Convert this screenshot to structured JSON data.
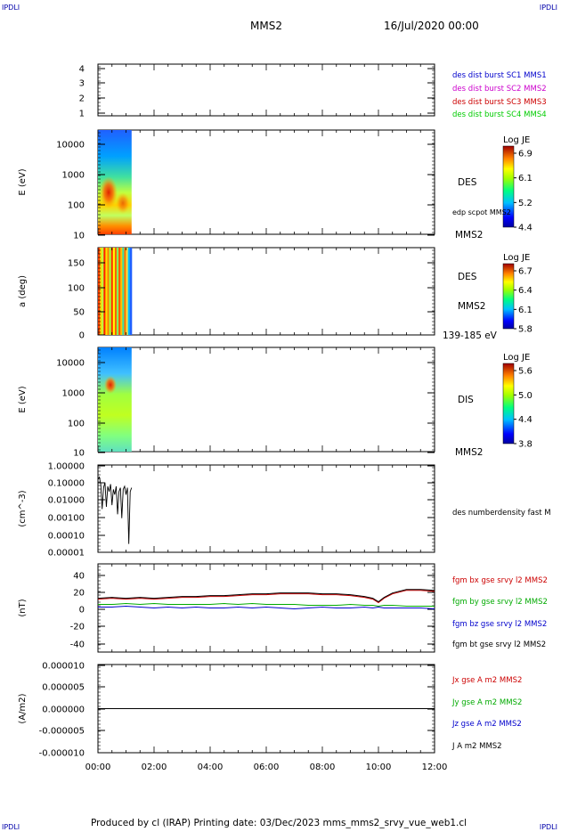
{
  "header": {
    "corner_tl": "IPDLI",
    "corner_tr": "IPDLI",
    "corner_bl": "IPDLI",
    "corner_br": "IPDLI",
    "title": "MMS2",
    "datetime": "16/Jul/2020 00:00"
  },
  "footer": {
    "text": "Produced by cl (IRAP)   Printing date: 03/Dec/2023   mms_mms2_srvy_vue_web1.cl"
  },
  "time_axis": {
    "ticks": [
      "00:00",
      "02:00",
      "04:00",
      "06:00",
      "08:00",
      "10:00",
      "12:00"
    ],
    "range_hours": [
      0,
      12
    ]
  },
  "colors": {
    "mms1": "#0000cc",
    "mms2": "#cc00cc",
    "mms3": "#cc0000",
    "mms4": "#00cc00",
    "bx": "#cc0000",
    "by": "#00aa00",
    "bz": "#0000cc",
    "bt": "#000000"
  },
  "chart_data": [
    {
      "type": "line",
      "id": "panel1",
      "ylabel": "",
      "yticks": [
        "4",
        "3",
        "2",
        "1"
      ],
      "ylim": [
        0.5,
        4.5
      ],
      "legend": [
        {
          "text": "des dist burst SC1 MMS1",
          "color": "#0000cc"
        },
        {
          "text": "des dist burst SC2 MMS2",
          "color": "#cc00cc"
        },
        {
          "text": "des dist burst SC3 MMS3",
          "color": "#cc0000"
        },
        {
          "text": "des dist burst SC4 MMS4",
          "color": "#00cc00"
        }
      ]
    },
    {
      "type": "heatmap",
      "id": "des_energy",
      "ylabel": "E (eV)",
      "yscale": "log",
      "yticks": [
        "10000",
        "1000",
        "100",
        "10"
      ],
      "ylim": [
        10,
        30000
      ],
      "data_x_range_hours": [
        0,
        1.2
      ],
      "right_labels": [
        "DES",
        "edp scpot MMS2",
        "MMS2"
      ],
      "colorbar": {
        "title": "Log JE",
        "ticks": [
          "6.9",
          "6.1",
          "5.2",
          "4.4"
        ],
        "range": [
          4.4,
          6.9
        ]
      }
    },
    {
      "type": "heatmap",
      "id": "des_pitch",
      "ylabel": "a (deg)",
      "yticks": [
        "150",
        "100",
        "50",
        "0"
      ],
      "ylim": [
        0,
        180
      ],
      "data_x_range_hours": [
        0,
        1.2
      ],
      "right_labels": [
        "DES",
        "MMS2",
        "139-185 eV"
      ],
      "colorbar": {
        "title": "Log JE",
        "ticks": [
          "6.7",
          "6.4",
          "6.1",
          "5.8"
        ],
        "range": [
          5.8,
          6.7
        ]
      }
    },
    {
      "type": "heatmap",
      "id": "dis_energy",
      "ylabel": "E (eV)",
      "yscale": "log",
      "yticks": [
        "10000",
        "1000",
        "100",
        "10"
      ],
      "ylim": [
        10,
        30000
      ],
      "data_x_range_hours": [
        0,
        1.2
      ],
      "right_labels": [
        "DIS",
        "MMS2"
      ],
      "colorbar": {
        "title": "Log JE",
        "ticks": [
          "5.6",
          "5.0",
          "4.4",
          "3.8"
        ],
        "range": [
          3.8,
          5.6
        ]
      }
    },
    {
      "type": "line",
      "id": "density",
      "ylabel": "(cm^-3)",
      "yscale": "log",
      "yticks": [
        "1.00000",
        "0.10000",
        "0.01000",
        "0.00100",
        "0.00010",
        "0.00001"
      ],
      "ylim": [
        1e-05,
        1
      ],
      "legend": [
        {
          "text": "des numberdensity fast M",
          "color": "#000000"
        }
      ],
      "series": [
        {
          "name": "des numberdensity fast M",
          "x": [
            0.0,
            0.05,
            0.1,
            0.15,
            0.2,
            0.25,
            0.3,
            0.35,
            0.4,
            0.45,
            0.5,
            0.55,
            0.6,
            0.65,
            0.7,
            0.75,
            0.8,
            0.85,
            0.9,
            0.95,
            1.0,
            1.05,
            1.1,
            1.15,
            1.2
          ],
          "y": [
            0.15,
            0.2,
            0.08,
            0.003,
            0.05,
            0.1,
            0.004,
            0.06,
            0.03,
            0.08,
            0.005,
            0.04,
            0.02,
            0.06,
            0.0015,
            0.03,
            0.05,
            0.0009,
            0.04,
            0.06,
            0.02,
            0.05,
            3e-05,
            0.03,
            0.05
          ]
        }
      ]
    },
    {
      "type": "line",
      "id": "bfield",
      "ylabel": "(nT)",
      "yticks": [
        "40",
        "20",
        "0",
        "-20",
        "-40"
      ],
      "ylim": [
        -50,
        50
      ],
      "legend": [
        {
          "text": "fgm bx gse srvy l2 MMS2",
          "color": "#cc0000"
        },
        {
          "text": "fgm by gse srvy l2 MMS2",
          "color": "#00aa00"
        },
        {
          "text": "fgm bz gse srvy l2 MMS2",
          "color": "#0000cc"
        },
        {
          "text": "fgm bt gse srvy l2 MMS2",
          "color": "#000000"
        }
      ],
      "x": [
        0,
        0.5,
        1,
        1.5,
        2,
        2.5,
        3,
        3.5,
        4,
        4.5,
        5,
        5.5,
        6,
        6.5,
        7,
        7.5,
        8,
        8.5,
        9,
        9.5,
        9.8,
        10,
        10.2,
        10.5,
        11,
        11.5,
        12
      ],
      "series": [
        {
          "name": "fgm bx gse srvy l2 MMS2",
          "values": [
            10,
            11,
            10,
            11,
            10,
            11,
            12,
            12,
            13,
            13,
            14,
            15,
            15,
            16,
            16,
            16,
            15,
            15,
            14,
            12,
            10,
            6,
            11,
            16,
            20,
            20,
            19
          ]
        },
        {
          "name": "fgm by gse srvy l2 MMS2",
          "values": [
            4,
            4,
            5,
            4,
            5,
            4,
            4,
            4,
            4,
            5,
            4,
            5,
            4,
            4,
            4,
            3,
            3,
            3,
            4,
            3,
            3,
            2,
            3,
            3,
            2,
            2,
            2
          ]
        },
        {
          "name": "fgm bz gse srvy l2 MMS2",
          "values": [
            1,
            1,
            2,
            1,
            0,
            1,
            0,
            1,
            0,
            0,
            1,
            0,
            1,
            0,
            -1,
            0,
            1,
            0,
            0,
            1,
            0,
            1,
            0,
            0,
            0,
            0,
            -1
          ]
        },
        {
          "name": "fgm bt gse srvy l2 MMS2",
          "values": [
            11,
            12,
            11,
            12,
            11,
            12,
            13,
            13,
            14,
            14,
            15,
            16,
            16,
            17,
            17,
            17,
            16,
            16,
            15,
            13,
            11,
            7,
            12,
            17,
            21,
            21,
            20
          ]
        }
      ]
    },
    {
      "type": "line",
      "id": "current",
      "ylabel": "(A/m2)",
      "yticks": [
        "0.000010",
        "0.000005",
        "0.000000",
        "-0.000005",
        "-0.000010"
      ],
      "ylim": [
        -1e-05,
        1e-05
      ],
      "legend": [
        {
          "text": "Jx gse A m2 MMS2",
          "color": "#cc0000"
        },
        {
          "text": "Jy gse A m2 MMS2",
          "color": "#00aa00"
        },
        {
          "text": "Jz gse A m2 MMS2",
          "color": "#0000cc"
        },
        {
          "text": "J A m2 MMS2",
          "color": "#000000"
        }
      ],
      "series": [
        {
          "name": "J A m2 MMS2",
          "x": [
            0,
            12
          ],
          "y": [
            0,
            0
          ]
        }
      ]
    }
  ]
}
